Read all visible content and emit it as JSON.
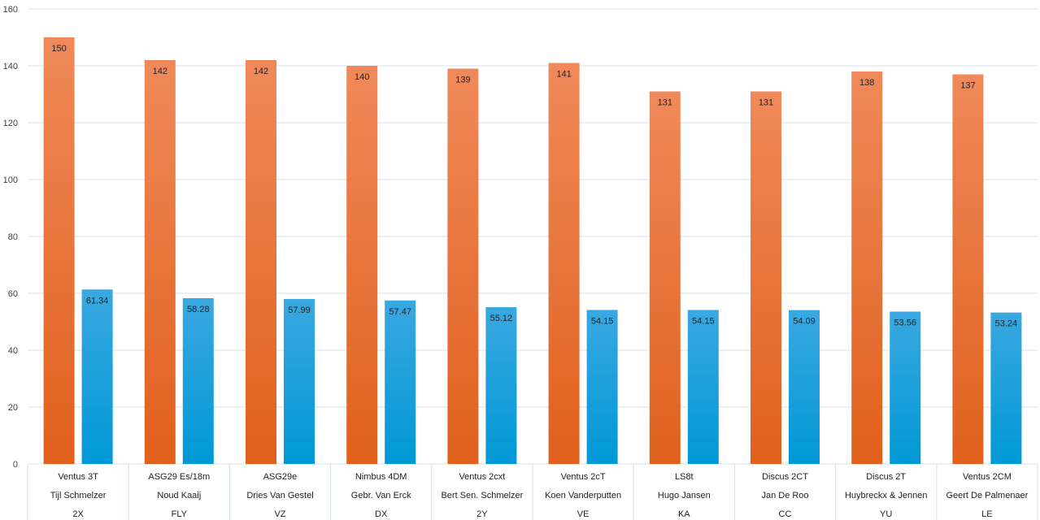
{
  "chart_data": {
    "type": "bar",
    "title": "",
    "xlabel": "",
    "ylabel": "",
    "ylim": [
      0,
      160
    ],
    "yticks": [
      0,
      20,
      40,
      60,
      80,
      100,
      120,
      140,
      160
    ],
    "grid": true,
    "legend": "none",
    "categories": [
      {
        "lines": [
          "Ventus 3T",
          "Tijl Schmelzer",
          "2X"
        ]
      },
      {
        "lines": [
          "ASG29 Es/18m",
          "Noud Kaaij",
          "FLY"
        ]
      },
      {
        "lines": [
          "ASG29e",
          "Dries Van Gestel",
          "VZ"
        ]
      },
      {
        "lines": [
          "Nimbus 4DM",
          "Gebr. Van Erck",
          "DX"
        ]
      },
      {
        "lines": [
          "Ventus 2cxt",
          "Bert Sen. Schmelzer",
          "2Y"
        ]
      },
      {
        "lines": [
          "Ventus 2cT",
          "Koen Vanderputten",
          "VE"
        ]
      },
      {
        "lines": [
          "LS8t",
          "Hugo Jansen",
          "KA"
        ]
      },
      {
        "lines": [
          "Discus 2CT",
          "Jan De Roo",
          "CC"
        ]
      },
      {
        "lines": [
          "Discus 2T",
          "Huybreckx & Jennen",
          "YU"
        ]
      },
      {
        "lines": [
          "Ventus 2CM",
          "Geert De Palmenaer",
          "LE"
        ]
      }
    ],
    "series": [
      {
        "values": [
          150,
          142,
          142,
          140,
          139,
          141,
          131,
          131,
          138,
          137
        ],
        "value_labels": [
          "150",
          "142",
          "142",
          "140",
          "139",
          "141",
          "131",
          "131",
          "138",
          "137"
        ],
        "color_top": "#f0895a",
        "color_bottom": "#e0601c"
      },
      {
        "values": [
          61.34,
          58.28,
          57.99,
          57.47,
          55.12,
          54.15,
          54.15,
          54.09,
          53.56,
          53.24
        ],
        "value_labels": [
          "61.34",
          "58.28",
          "57.99",
          "57.47",
          "55.12",
          "54.15",
          "54.15",
          "54.09",
          "53.56",
          "53.24"
        ],
        "color_top": "#3aa8e0",
        "color_bottom": "#0098d6"
      }
    ]
  },
  "colors": {
    "grid": "#d5e3ea",
    "axis_text": "#404040",
    "background": "#ffffff"
  }
}
